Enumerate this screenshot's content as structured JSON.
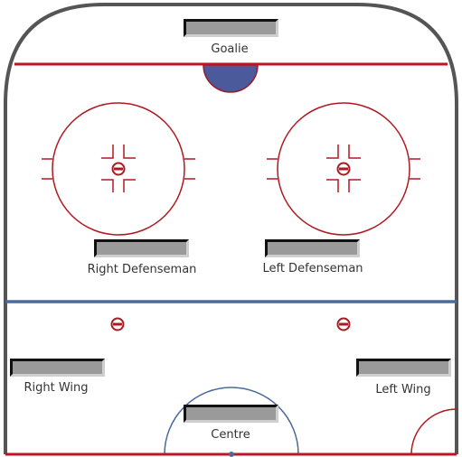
{
  "diagram": {
    "colors": {
      "boards": "#555555",
      "red_line": "#c0141f",
      "blue_line": "#4a6a9a",
      "crease": "#4a5a9a",
      "faceoff": "#b01820",
      "slot_fill": "#9a9a9a"
    },
    "positions": {
      "goalie": "Goalie",
      "right_defenseman": "Right Defenseman",
      "left_defenseman": "Left Defenseman",
      "right_wing": "Right Wing",
      "left_wing": "Left Wing",
      "centre": "Centre"
    }
  }
}
